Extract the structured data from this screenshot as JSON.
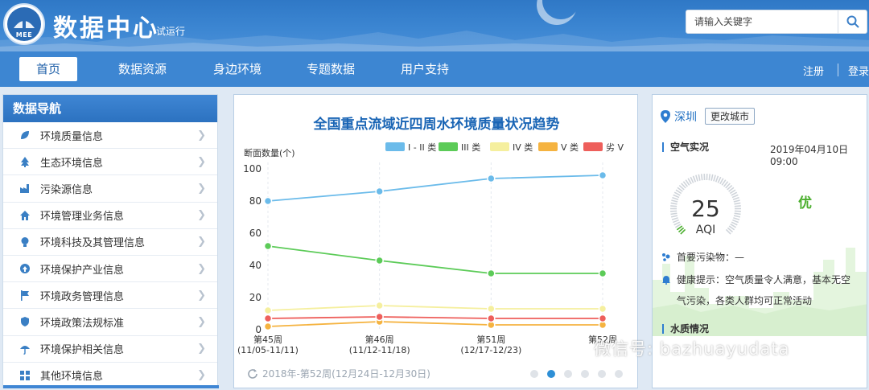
{
  "header": {
    "logo_text": "MEE",
    "title": "数据中心",
    "subtitle": "试运行",
    "search_placeholder": "请输入关键字"
  },
  "nav": {
    "items": [
      "首页",
      "数据资源",
      "身边环境",
      "专题数据",
      "用户支持"
    ],
    "register": "注册",
    "login": "登录"
  },
  "sidebar": {
    "title": "数据导航",
    "items": [
      {
        "label": "环境质量信息",
        "icon": "leaf-icon"
      },
      {
        "label": "生态环境信息",
        "icon": "tree-icon"
      },
      {
        "label": "污染源信息",
        "icon": "factory-icon"
      },
      {
        "label": "环境管理业务信息",
        "icon": "home-icon"
      },
      {
        "label": "环境科技及其管理信息",
        "icon": "lightbulb-icon"
      },
      {
        "label": "环境保护产业信息",
        "icon": "recycle-icon"
      },
      {
        "label": "环境政务管理信息",
        "icon": "flag-icon"
      },
      {
        "label": "环境政策法规标准",
        "icon": "shield-icon"
      },
      {
        "label": "环境保护相关信息",
        "icon": "umbrella-icon"
      },
      {
        "label": "其他环境信息",
        "icon": "grid-icon"
      }
    ]
  },
  "chart_panel": {
    "footer": "2018年-第52周(12月24日-12月30日)",
    "dots_count": 6,
    "active_dot": 1
  },
  "chart_data": {
    "type": "line",
    "title": "全国重点流域近四周水环境质量状况趋势",
    "ylabel": "断面数量(个)",
    "ylim": [
      0,
      100
    ],
    "yticks": [
      0,
      20,
      40,
      60,
      80,
      100
    ],
    "categories": [
      "第45周",
      "第46周",
      "第51周",
      "第52周"
    ],
    "category_dates": [
      "(11/05-11/11)",
      "(11/12-11/18)",
      "(12/17-12/23)",
      ""
    ],
    "legend_position": "top-right",
    "series": [
      {
        "name": "I - II 类",
        "color": "#6bbbea",
        "values": [
          80,
          86,
          94,
          96
        ]
      },
      {
        "name": "III 类",
        "color": "#5ccb58",
        "values": [
          52,
          43,
          35,
          35
        ]
      },
      {
        "name": "IV 类",
        "color": "#f5ef9e",
        "values": [
          12,
          15,
          13,
          13
        ]
      },
      {
        "name": "V 类",
        "color": "#f5b340",
        "values": [
          2,
          5,
          3,
          3
        ]
      },
      {
        "name": "劣 V",
        "color": "#ee5f5b",
        "values": [
          7,
          8,
          7,
          7
        ]
      }
    ]
  },
  "right_panel": {
    "city": "深圳",
    "change_city": "更改城市",
    "air_title": "空气实况",
    "air_time": "2019年04月10日 09:00",
    "aqi_value": "25",
    "aqi_label": "AQI",
    "aqi_level": "优",
    "aqi_fraction": 0.05,
    "pollutant": "首要污染物：—",
    "health_line1": "健康提示：空气质量令人满意，基本无空",
    "health_line2": "气污染，各类人群均可正常活动",
    "water_title": "水质情况"
  },
  "watermark": "微信号: bazhuayudata",
  "colors": {
    "header": "#3a84d0",
    "nav_active_text": "#1e5fa8",
    "accent": "#1a65b5",
    "good": "#4caf2f"
  }
}
